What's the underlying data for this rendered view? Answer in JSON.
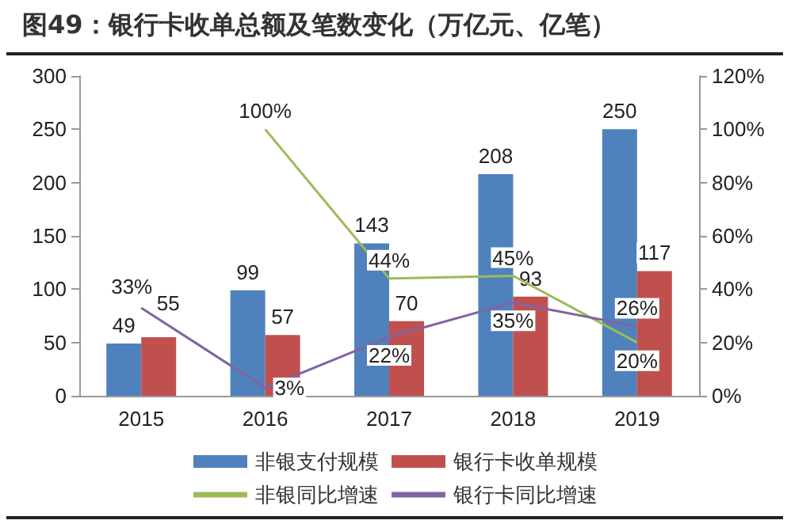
{
  "chart_data": {
    "type": "bar",
    "title": "图49：银行卡收单总额及笔数变化（万亿元、亿笔）",
    "categories": [
      "2015",
      "2016",
      "2017",
      "2018",
      "2019"
    ],
    "series": [
      {
        "name": "非银支付规模",
        "color": "#4f81bd",
        "values": [
          49,
          99,
          143,
          208,
          250
        ],
        "value_labels": [
          "49",
          "99",
          "143",
          "208",
          "250"
        ]
      },
      {
        "name": "银行卡收单规模",
        "color": "#c0504d",
        "values": [
          55,
          57,
          70,
          93,
          117
        ],
        "value_labels": [
          "55",
          "57",
          "70",
          "93",
          "117"
        ]
      },
      {
        "name": "非银同比增速",
        "type": "line",
        "axis": "y2",
        "color": "#9bbb59",
        "values": [
          null,
          100,
          44,
          45,
          20
        ],
        "value_labels": [
          null,
          "100%",
          "44%",
          "45%",
          "20%"
        ]
      },
      {
        "name": "银行卡同比增速",
        "type": "line",
        "axis": "y2",
        "color": "#8064a2",
        "values": [
          33,
          3,
          22,
          35,
          26
        ],
        "value_labels": [
          "33%",
          "3%",
          "22%",
          "35%",
          "26%"
        ]
      }
    ],
    "ylim": [
      0,
      300
    ],
    "yticks": [
      0,
      50,
      100,
      150,
      200,
      250,
      300
    ],
    "y2lim": [
      0,
      120
    ],
    "y2ticks": [
      {
        "value": 0,
        "label": "0%"
      },
      {
        "value": 20,
        "label": "20%"
      },
      {
        "value": 40,
        "label": "40%"
      },
      {
        "value": 60,
        "label": "60%"
      },
      {
        "value": 80,
        "label": "80%"
      },
      {
        "value": 100,
        "label": "100%"
      },
      {
        "value": 120,
        "label": "120%"
      }
    ],
    "grid": false,
    "legend": "bottom",
    "marker": "none"
  }
}
